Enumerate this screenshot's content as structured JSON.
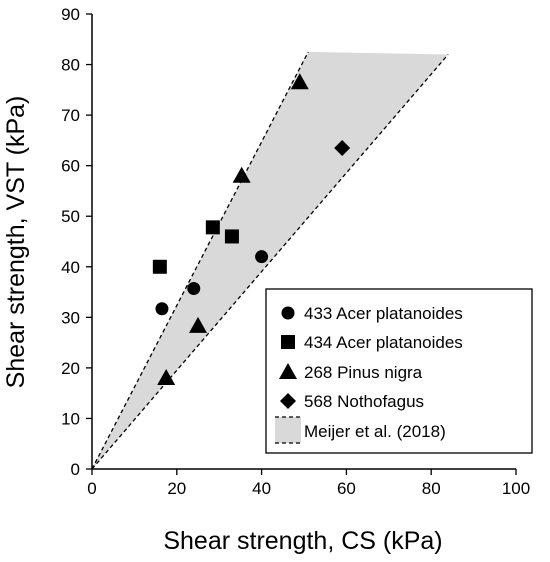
{
  "chart_data": {
    "type": "scatter",
    "title": "",
    "xlabel": "Shear strength, CS (kPa)",
    "ylabel": "Shear strength, VST (kPa)",
    "xlim": [
      0,
      100
    ],
    "ylim": [
      0,
      90
    ],
    "xticks": [
      "0",
      "20",
      "40",
      "60",
      "80",
      "100"
    ],
    "yticks": [
      "0",
      "10",
      "20",
      "30",
      "40",
      "50",
      "60",
      "70",
      "80",
      "90"
    ],
    "grid": false,
    "legend_position": "bottom-right",
    "series": [
      {
        "name": "433 Acer platanoides",
        "marker": "circle",
        "color": "#000000",
        "points": [
          [
            16.5,
            31.7
          ],
          [
            24,
            35.7
          ],
          [
            40,
            42
          ]
        ]
      },
      {
        "name": "434 Acer platanoides",
        "marker": "square",
        "color": "#000000",
        "points": [
          [
            16,
            40
          ],
          [
            28.5,
            47.8
          ],
          [
            33,
            46
          ]
        ]
      },
      {
        "name": "268 Pinus nigra",
        "marker": "triangle",
        "color": "#000000",
        "points": [
          [
            17.5,
            18
          ],
          [
            25,
            28.3
          ],
          [
            35.3,
            58
          ],
          [
            49,
            76.5
          ]
        ]
      },
      {
        "name": "568 Nothofagus",
        "marker": "diamond",
        "color": "#000000",
        "points": [
          [
            59,
            63.5
          ]
        ]
      }
    ],
    "band": {
      "name": "Meijer et al. (2018)",
      "fill": "#d9d9d9",
      "upper_line": [
        [
          0,
          0
        ],
        [
          51,
          82.5
        ]
      ],
      "lower_line": [
        [
          0,
          0
        ],
        [
          84,
          82
        ]
      ]
    }
  }
}
